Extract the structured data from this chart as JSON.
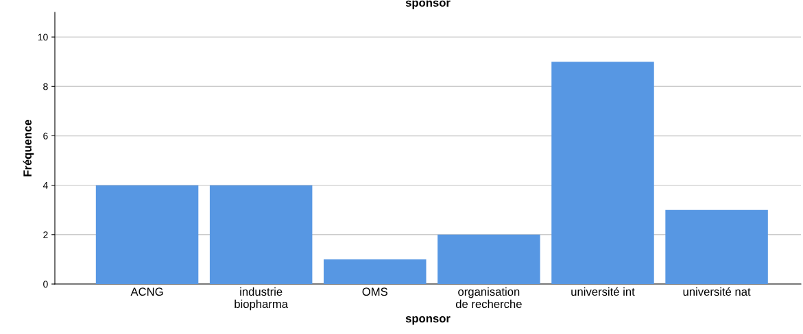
{
  "chart_data": {
    "type": "bar",
    "title": "sponsor",
    "xlabel": "sponsor",
    "ylabel": "Fréquence",
    "categories": [
      "ACNG",
      "industrie\nbiopharma",
      "OMS",
      "organisation\nde recherche",
      "université int",
      "université nat"
    ],
    "values": [
      4,
      4,
      1,
      2,
      9,
      3
    ],
    "color": "#5797e3",
    "ylim": [
      0,
      11
    ],
    "yticks": [
      0,
      2,
      4,
      6,
      8,
      10
    ],
    "grid": "y",
    "legend": false
  }
}
